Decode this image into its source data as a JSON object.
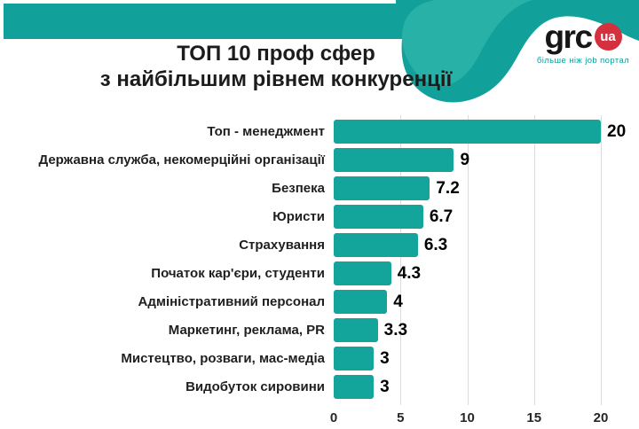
{
  "header": {
    "title_line1": "ТОП 10 проф сфер",
    "title_line2": "з найбільшим рівнем конкуренції",
    "logo": {
      "text": "grc",
      "badge": "ua",
      "tagline": "більше ніж job портал"
    }
  },
  "colors": {
    "teal_dark": "#11A19A",
    "teal_light": "#27B1A7",
    "bar": "#13A59C",
    "badge_red": "#D5303E",
    "grid": "#DCDCDC",
    "title_text": "#1C1C1C",
    "tagline_teal": "#0AA29B"
  },
  "chart_data": {
    "type": "bar",
    "orientation": "horizontal",
    "title": "ТОП 10 проф сфер з найбільшим рівнем конкуренції",
    "categories": [
      "Топ - менеджмент",
      "Державна служба, некомерційні організації",
      "Безпека",
      "Юристи",
      "Страхування",
      "Початок кар'єри, студенти",
      "Адміністративний персонал",
      "Маркетинг, реклама, PR",
      "Мистецтво, розваги, мас-медіа",
      "Видобуток сировини"
    ],
    "values": [
      20,
      9,
      7.2,
      6.7,
      6.3,
      4.3,
      4,
      3.3,
      3,
      3
    ],
    "xlabel": "",
    "ylabel": "",
    "xlim": [
      0,
      20
    ],
    "xticks": [
      0,
      5,
      10,
      15,
      20
    ],
    "grid": true,
    "legend": false,
    "bar_color": "#13A59C"
  }
}
